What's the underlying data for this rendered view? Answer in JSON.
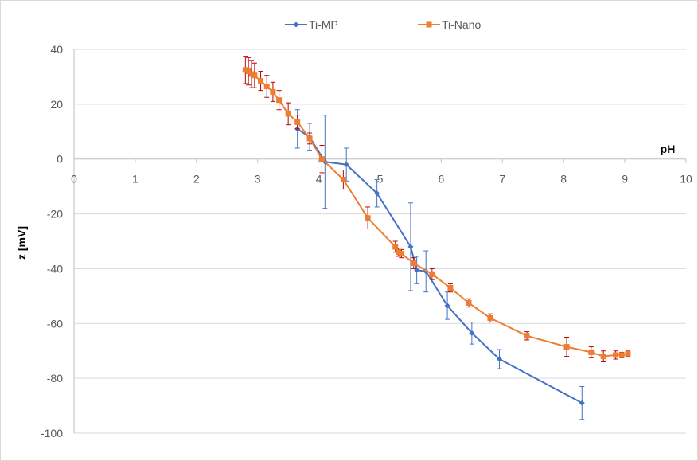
{
  "chart_data": {
    "type": "scatter",
    "title": "",
    "xlabel": "pH",
    "ylabel": "z [mV]",
    "xlim": [
      0,
      10
    ],
    "ylim": [
      -100,
      40
    ],
    "x_ticks": [
      "0",
      "1",
      "2",
      "3",
      "4",
      "5",
      "6",
      "7",
      "8",
      "9",
      "10"
    ],
    "y_ticks": [
      "40",
      "20",
      "0",
      "-20",
      "-40",
      "-60",
      "-80",
      "-100"
    ],
    "grid": "horizontal",
    "legend": "top",
    "lines_connect_points": true,
    "error_bars": true,
    "series": [
      {
        "name": "Ti-MP",
        "color": "#4472c4",
        "error_bar_color": "#4472c4",
        "marker": "diamond",
        "points": [
          {
            "x": 3.65,
            "y": 11,
            "err": 7
          },
          {
            "x": 3.85,
            "y": 8,
            "err": 5
          },
          {
            "x": 4.1,
            "y": -1,
            "err": 17
          },
          {
            "x": 4.45,
            "y": -2,
            "err": 6
          },
          {
            "x": 4.95,
            "y": -12.5,
            "err": 5
          },
          {
            "x": 5.5,
            "y": -32,
            "err": 16
          },
          {
            "x": 5.6,
            "y": -40.5,
            "err": 5
          },
          {
            "x": 5.75,
            "y": -41,
            "err": 7.5
          },
          {
            "x": 6.1,
            "y": -53.5,
            "err": 5
          },
          {
            "x": 6.5,
            "y": -63.5,
            "err": 4
          },
          {
            "x": 6.95,
            "y": -73,
            "err": 3.5
          },
          {
            "x": 8.3,
            "y": -89,
            "err": 6
          }
        ]
      },
      {
        "name": "Ti-Nano",
        "color": "#ed7d31",
        "error_bar_color": "#c00000",
        "marker": "square",
        "points": [
          {
            "x": 2.8,
            "y": 32.5,
            "err": 5
          },
          {
            "x": 2.85,
            "y": 32,
            "err": 5
          },
          {
            "x": 2.9,
            "y": 31,
            "err": 5
          },
          {
            "x": 2.95,
            "y": 30.5,
            "err": 4.5
          },
          {
            "x": 3.05,
            "y": 28.5,
            "err": 3.5
          },
          {
            "x": 3.15,
            "y": 26.5,
            "err": 4
          },
          {
            "x": 3.25,
            "y": 24.5,
            "err": 3.5
          },
          {
            "x": 3.35,
            "y": 21.5,
            "err": 3.5
          },
          {
            "x": 3.5,
            "y": 16.5,
            "err": 4
          },
          {
            "x": 3.65,
            "y": 13.5,
            "err": 2.5
          },
          {
            "x": 3.85,
            "y": 7.5,
            "err": 2
          },
          {
            "x": 4.05,
            "y": 0,
            "err": 5
          },
          {
            "x": 4.4,
            "y": -7.5,
            "err": 3.5
          },
          {
            "x": 4.8,
            "y": -21.5,
            "err": 4
          },
          {
            "x": 5.25,
            "y": -32,
            "err": 2
          },
          {
            "x": 5.3,
            "y": -34,
            "err": 1.5
          },
          {
            "x": 5.35,
            "y": -34.5,
            "err": 1.5
          },
          {
            "x": 5.55,
            "y": -38,
            "err": 2
          },
          {
            "x": 5.85,
            "y": -42,
            "err": 2
          },
          {
            "x": 6.15,
            "y": -47,
            "err": 1.5
          },
          {
            "x": 6.45,
            "y": -52.5,
            "err": 1.5
          },
          {
            "x": 6.8,
            "y": -58,
            "err": 1.5
          },
          {
            "x": 7.4,
            "y": -64.5,
            "err": 1.5
          },
          {
            "x": 8.05,
            "y": -68.5,
            "err": 3.5
          },
          {
            "x": 8.45,
            "y": -70.5,
            "err": 2
          },
          {
            "x": 8.65,
            "y": -72,
            "err": 2
          },
          {
            "x": 8.85,
            "y": -71.5,
            "err": 1.5
          },
          {
            "x": 8.95,
            "y": -71.5,
            "err": 1
          },
          {
            "x": 9.05,
            "y": -71,
            "err": 1
          }
        ]
      }
    ]
  }
}
